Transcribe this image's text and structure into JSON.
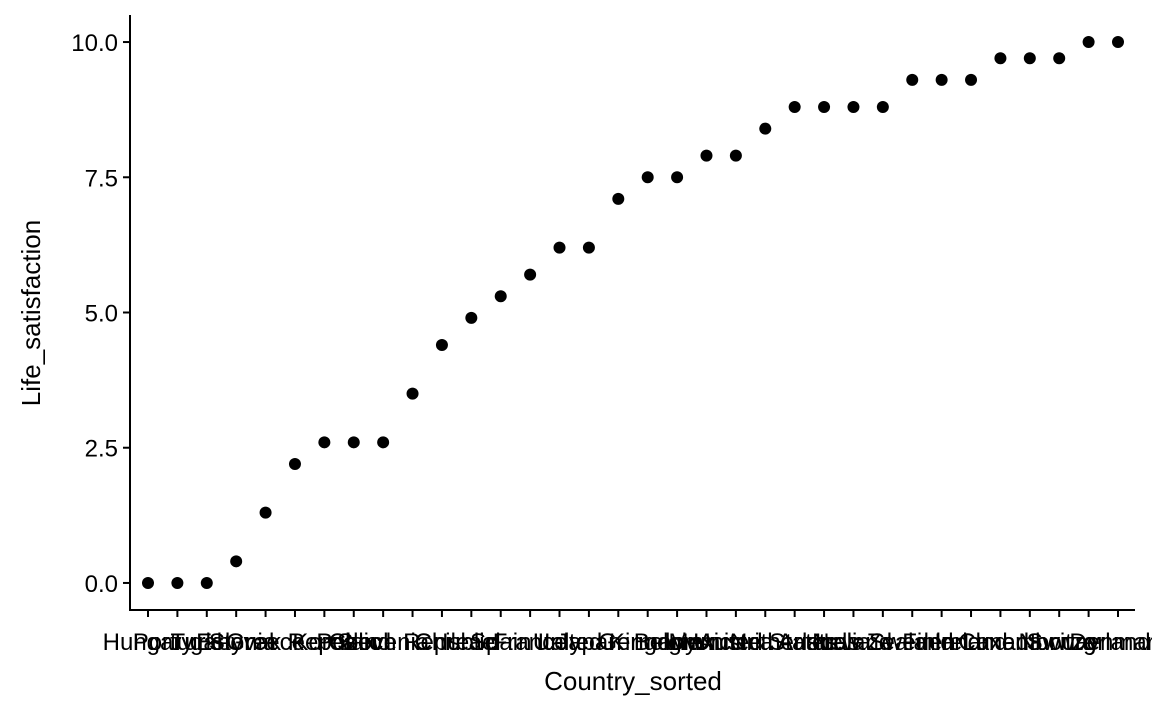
{
  "chart_data": {
    "type": "scatter",
    "x_label": "Country_sorted",
    "y_label": "Life_satisfaction",
    "categories": [
      "Hungary",
      "Portugal",
      "Turkey",
      "Estonia",
      "Greece",
      "Slovak Republic",
      "Korea",
      "Poland",
      "Slovenia",
      "Czech Republic",
      "Chile",
      "Israel",
      "Spain",
      "France",
      "Italy",
      "Japan",
      "United Kingdom",
      "Germany",
      "Belgium",
      "Mexico",
      "Austria",
      "United States",
      "Netherlands",
      "Australia",
      "Iceland",
      "New Zealand",
      "Sweden",
      "Finland",
      "Ireland",
      "Canada",
      "Luxembourg",
      "Norway",
      "Switzerland",
      "Denmark"
    ],
    "values": [
      0,
      0,
      0,
      0.4,
      1.3,
      2.2,
      2.6,
      2.6,
      2.6,
      3.5,
      4.4,
      4.9,
      5.3,
      5.7,
      6.2,
      6.2,
      7.1,
      7.5,
      7.5,
      7.9,
      7.9,
      8.4,
      8.8,
      8.8,
      8.8,
      8.8,
      9.3,
      9.3,
      9.3,
      9.7,
      9.7,
      9.7,
      10,
      10
    ],
    "color": "#000000",
    "ylim": [
      -0.5,
      10.5
    ],
    "yticks": [
      {
        "value": 0,
        "label": "0.0"
      },
      {
        "value": 2.5,
        "label": "2.5"
      },
      {
        "value": 5,
        "label": "5.0"
      },
      {
        "value": 7.5,
        "label": "7.5"
      },
      {
        "value": 10,
        "label": "10.0"
      }
    ]
  }
}
